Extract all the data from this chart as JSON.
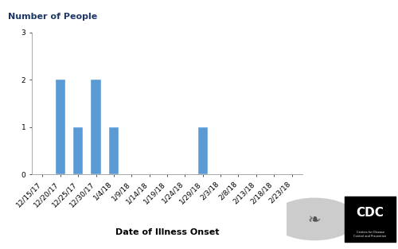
{
  "categories": [
    "12/15/17",
    "12/20/17",
    "12/25/17",
    "12/30/17",
    "1/4/18",
    "1/9/18",
    "1/14/18",
    "1/19/18",
    "1/24/18",
    "1/29/18",
    "2/3/18",
    "2/8/18",
    "2/13/18",
    "2/18/18",
    "2/23/18"
  ],
  "bar_values": {
    "12/15/17": 0,
    "12/20/17": 2,
    "12/25/17": 1,
    "12/30/17": 2,
    "1/4/18": 1,
    "1/9/18": 0,
    "1/14/18": 0,
    "1/19/18": 0,
    "1/24/18": 0,
    "1/29/18": 1,
    "2/3/18": 0,
    "2/8/18": 0,
    "2/13/18": 0,
    "2/18/18": 0,
    "2/23/18": 0
  },
  "bar_color": "#5b9bd5",
  "ylabel": "Number of People",
  "xlabel": "Date of Illness Onset",
  "ylim": [
    0,
    3
  ],
  "yticks": [
    0,
    1,
    2,
    3
  ],
  "background_color": "#ffffff",
  "ylabel_fontsize": 8,
  "xlabel_fontsize": 8,
  "tick_fontsize": 6.5,
  "bar_width": 0.55
}
